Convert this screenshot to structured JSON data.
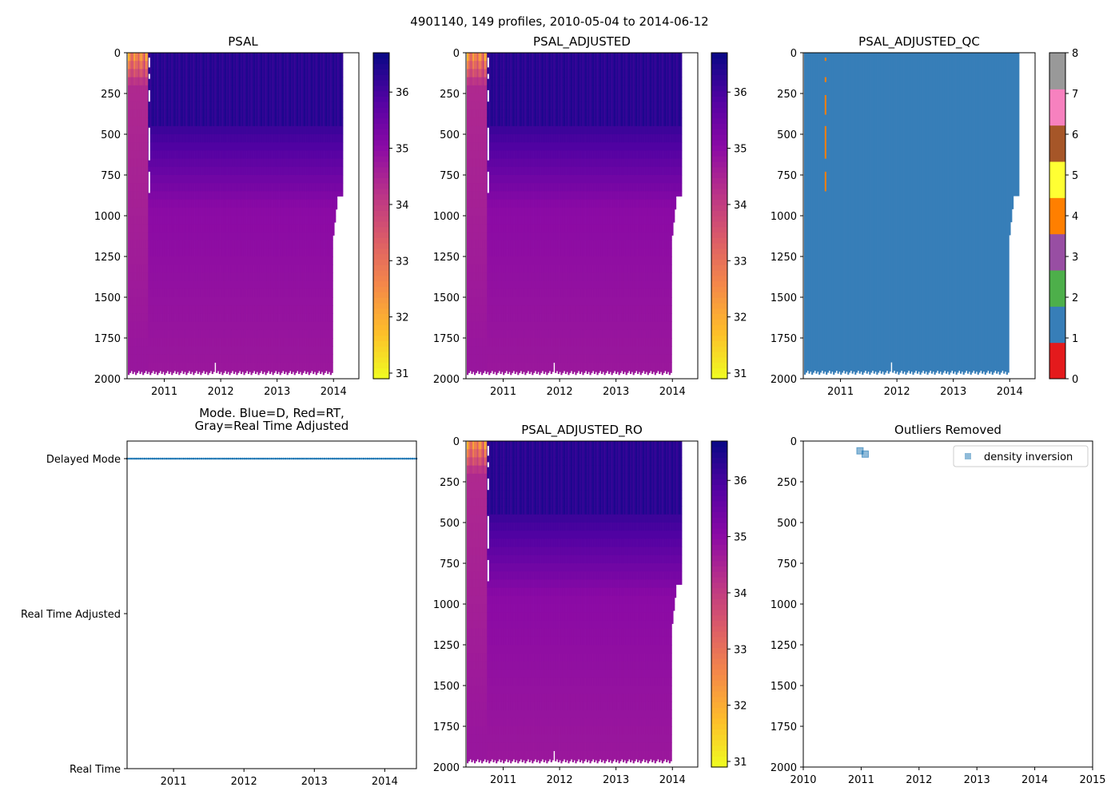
{
  "figure": {
    "suptitle": "4901140, 149 profiles, 2010-05-04 to 2014-06-12"
  },
  "chart_data": [
    {
      "id": "psal",
      "type": "heatmap",
      "title": "PSAL",
      "xlim": [
        2010.34,
        2014.45
      ],
      "ylim": [
        2000,
        0
      ],
      "xticks": [
        2011,
        2012,
        2013,
        2014
      ],
      "yticks": [
        0,
        250,
        500,
        750,
        1000,
        1250,
        1500,
        1750,
        2000
      ],
      "colorbar": {
        "cmap": "plasma_r",
        "range": [
          30.9,
          36.7
        ],
        "ticks": [
          31,
          32,
          33,
          34,
          35,
          36
        ]
      },
      "data_gap_profiles": [
        14
      ]
    },
    {
      "id": "psal_adjusted",
      "type": "heatmap",
      "title": "PSAL_ADJUSTED",
      "xlim": [
        2010.34,
        2014.45
      ],
      "ylim": [
        2000,
        0
      ],
      "xticks": [
        2011,
        2012,
        2013,
        2014
      ],
      "yticks": [
        0,
        250,
        500,
        750,
        1000,
        1250,
        1500,
        1750,
        2000
      ],
      "colorbar": {
        "cmap": "plasma_r",
        "range": [
          30.9,
          36.7
        ],
        "ticks": [
          31,
          32,
          33,
          34,
          35,
          36
        ]
      },
      "data_gap_profiles": [
        14
      ]
    },
    {
      "id": "psal_adjusted_qc",
      "type": "heatmap",
      "title": "PSAL_ADJUSTED_QC",
      "xlim": [
        2010.34,
        2014.45
      ],
      "ylim": [
        2000,
        0
      ],
      "xticks": [
        2011,
        2012,
        2013,
        2014
      ],
      "yticks": [
        0,
        250,
        500,
        750,
        1000,
        1250,
        1500,
        1750,
        2000
      ],
      "colorbar": {
        "cmap": "qc_categorical",
        "range": [
          0,
          8
        ],
        "ticks": [
          0,
          1,
          2,
          3,
          4,
          5,
          6,
          7,
          8
        ],
        "colors": [
          "#e41a1c",
          "#377eb8",
          "#4daf4a",
          "#984ea3",
          "#ff7f00",
          "#ffff33",
          "#a65628",
          "#f781bf",
          "#999999"
        ]
      },
      "dominant_flag": 1,
      "flag_4_segments": [
        [
          30,
          50
        ],
        [
          150,
          180
        ],
        [
          260,
          380
        ],
        [
          450,
          650
        ],
        [
          730,
          850
        ]
      ]
    },
    {
      "id": "mode",
      "type": "scatter",
      "title_lines": [
        "Mode. Blue=D, Red=RT,",
        "Gray=Real Time Adjusted"
      ],
      "xlim": [
        2010.34,
        2014.45
      ],
      "xticks": [
        2011,
        2012,
        2013,
        2014
      ],
      "yticks": [
        "Real Time",
        "Real Time Adjusted",
        "Delayed Mode"
      ],
      "series": [
        {
          "name": "Delayed Mode",
          "color": "#1f77b4",
          "n_points": 149,
          "x_range": [
            2010.34,
            2014.45
          ]
        }
      ]
    },
    {
      "id": "psal_adjusted_ro",
      "type": "heatmap",
      "title": "PSAL_ADJUSTED_RO",
      "xlim": [
        2010.34,
        2014.45
      ],
      "ylim": [
        2000,
        0
      ],
      "xticks": [
        2011,
        2012,
        2013,
        2014
      ],
      "yticks": [
        0,
        250,
        500,
        750,
        1000,
        1250,
        1500,
        1750,
        2000
      ],
      "colorbar": {
        "cmap": "plasma_r",
        "range": [
          30.9,
          36.7
        ],
        "ticks": [
          31,
          32,
          33,
          34,
          35,
          36
        ]
      },
      "data_gap_profiles": [
        14
      ]
    },
    {
      "id": "outliers",
      "type": "scatter",
      "title": "Outliers Removed",
      "xlim": [
        2010,
        2015
      ],
      "ylim": [
        2000,
        0
      ],
      "xticks": [
        2010,
        2011,
        2012,
        2013,
        2014,
        2015
      ],
      "yticks": [
        0,
        250,
        500,
        750,
        1000,
        1250,
        1500,
        1750,
        2000
      ],
      "legend": {
        "location": "upper right",
        "entries": [
          "density inversion"
        ]
      },
      "series": [
        {
          "name": "density inversion",
          "color": "#1f77b4",
          "marker": "square",
          "points": [
            [
              2010.98,
              60
            ],
            [
              2011.07,
              80
            ]
          ]
        }
      ]
    }
  ]
}
